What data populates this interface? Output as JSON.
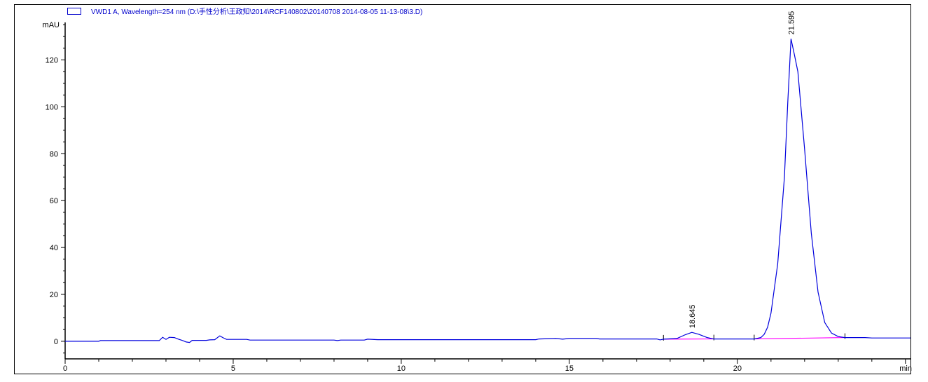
{
  "legend": {
    "text": "VWD1 A, Wavelength=254 nm (D:\\手性分析\\王政知\\2014\\RCF140802\\20140708 2014-08-05 11-13-08\\3.D)",
    "color": "#0000cc"
  },
  "chart_data": {
    "type": "line",
    "title": "",
    "xlabel": "min",
    "ylabel": "mAU",
    "xlim": [
      0,
      25.15
    ],
    "ylim": [
      -7.5,
      136
    ],
    "xticks": [
      0,
      5,
      10,
      15,
      20
    ],
    "yticks": [
      0,
      20,
      40,
      60,
      80,
      100,
      120
    ],
    "grid": false,
    "legend_placement": "top-left",
    "colors": {
      "signal": "#0000dd",
      "baseline": "#ff00ff",
      "axis": "#000000"
    },
    "series": [
      {
        "name": "VWD1 A, Wavelength=254 nm",
        "points": [
          [
            0,
            0
          ],
          [
            1.0,
            0
          ],
          [
            1.05,
            0.3
          ],
          [
            2.8,
            0.3
          ],
          [
            2.9,
            1.7
          ],
          [
            3.0,
            0.8
          ],
          [
            3.1,
            1.7
          ],
          [
            3.25,
            1.6
          ],
          [
            3.35,
            1.0
          ],
          [
            3.5,
            0.3
          ],
          [
            3.6,
            -0.3
          ],
          [
            3.7,
            -0.5
          ],
          [
            3.78,
            0.4
          ],
          [
            4.2,
            0.4
          ],
          [
            4.3,
            0.6
          ],
          [
            4.45,
            0.7
          ],
          [
            4.6,
            2.3
          ],
          [
            4.7,
            1.5
          ],
          [
            4.8,
            0.8
          ],
          [
            5.4,
            0.8
          ],
          [
            5.5,
            0.5
          ],
          [
            8.0,
            0.5
          ],
          [
            8.1,
            0.3
          ],
          [
            8.2,
            0.5
          ],
          [
            8.9,
            0.5
          ],
          [
            9.0,
            0.9
          ],
          [
            9.3,
            0.7
          ],
          [
            14.0,
            0.7
          ],
          [
            14.1,
            1.0
          ],
          [
            14.6,
            1.2
          ],
          [
            14.8,
            0.9
          ],
          [
            15.0,
            1.2
          ],
          [
            15.8,
            1.2
          ],
          [
            15.9,
            1.0
          ],
          [
            17.6,
            1.0
          ],
          [
            17.7,
            0.6
          ],
          [
            17.8,
            0.9
          ],
          [
            18.2,
            1.2
          ],
          [
            18.45,
            2.8
          ],
          [
            18.645,
            3.8
          ],
          [
            18.85,
            3.0
          ],
          [
            19.1,
            1.6
          ],
          [
            19.3,
            1.0
          ],
          [
            20.5,
            1.0
          ],
          [
            20.7,
            1.6
          ],
          [
            20.8,
            3.0
          ],
          [
            20.9,
            6.0
          ],
          [
            21.0,
            12
          ],
          [
            21.2,
            33
          ],
          [
            21.4,
            70
          ],
          [
            21.5,
            102
          ],
          [
            21.595,
            129
          ],
          [
            21.7,
            122
          ],
          [
            21.8,
            115
          ],
          [
            22.0,
            82
          ],
          [
            22.2,
            46
          ],
          [
            22.4,
            21
          ],
          [
            22.6,
            8
          ],
          [
            22.8,
            3.5
          ],
          [
            23.0,
            2.0
          ],
          [
            23.2,
            1.6
          ],
          [
            23.8,
            1.6
          ],
          [
            24.0,
            1.4
          ],
          [
            25.15,
            1.4
          ]
        ]
      }
    ],
    "baselines": [
      [
        [
          17.8,
          0.9
        ],
        [
          19.3,
          1.0
        ]
      ],
      [
        [
          20.5,
          1.0
        ],
        [
          23.2,
          1.6
        ]
      ]
    ],
    "peaks": [
      {
        "rt": 18.645,
        "height": 3.8,
        "label": "18.645"
      },
      {
        "rt": 21.595,
        "height": 129,
        "label": "21.595"
      }
    ]
  }
}
